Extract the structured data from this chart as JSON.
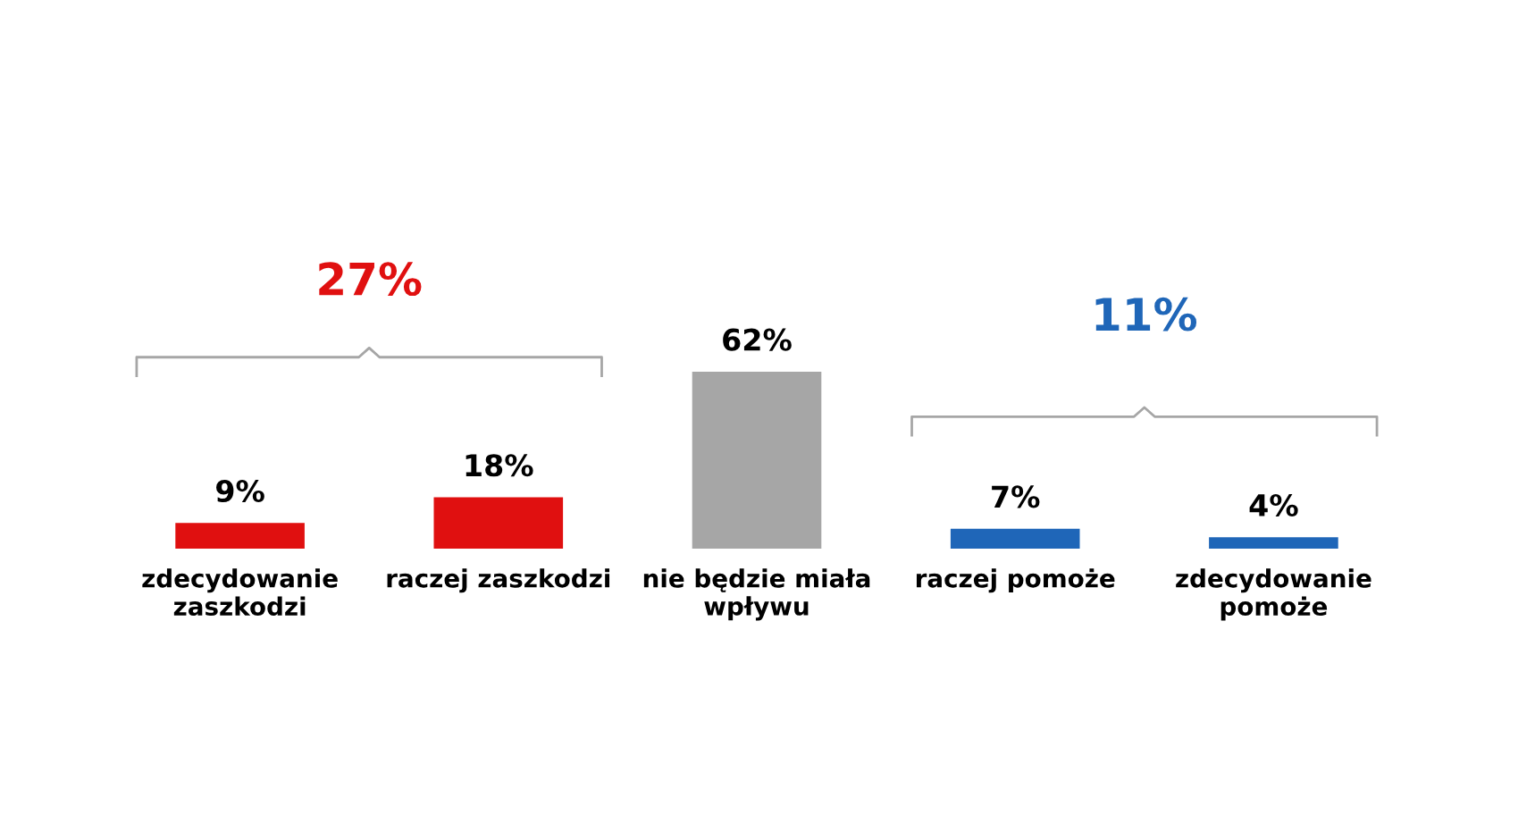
{
  "chart_data": {
    "type": "bar",
    "categories": [
      "zdecydowanie\nzaszkodzi",
      "raczej zaszkodzi",
      "nie będzie miała\nwpływu",
      "raczej pomoże",
      "zdecydowanie\npomoże"
    ],
    "values": [
      9,
      18,
      62,
      7,
      4
    ],
    "colors": [
      "#e01010",
      "#e01010",
      "#a6a6a6",
      "#1f66b8",
      "#1f66b8"
    ],
    "tick_labels": "x",
    "data_labels": true,
    "value_labels": [
      "9%",
      "18%",
      "62%",
      "7%",
      "4%"
    ],
    "annotations": [
      "27%",
      "11%"
    ],
    "grid": false,
    "legend": false
  }
}
